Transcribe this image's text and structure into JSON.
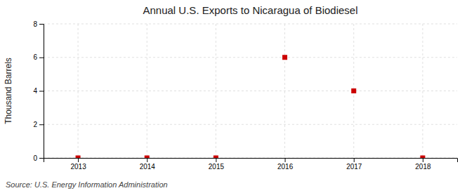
{
  "chart_data": {
    "type": "scatter",
    "title": "Annual U.S. Exports to Nicaragua of Biodiesel",
    "ylabel": "Thousand Barrels",
    "source": "Source: U.S. Energy Information Administration",
    "x": [
      2013,
      2014,
      2015,
      2016,
      2017,
      2018
    ],
    "values": [
      0,
      0,
      0,
      6,
      4,
      0
    ],
    "color": "#cc0000",
    "marker": "square",
    "xlim": [
      2012.5,
      2018.5
    ],
    "xticks": [
      2013,
      2014,
      2015,
      2016,
      2017,
      2018
    ],
    "ylim": [
      0,
      8
    ],
    "yticks": [
      0,
      2,
      4,
      6,
      8
    ],
    "grid": true
  }
}
